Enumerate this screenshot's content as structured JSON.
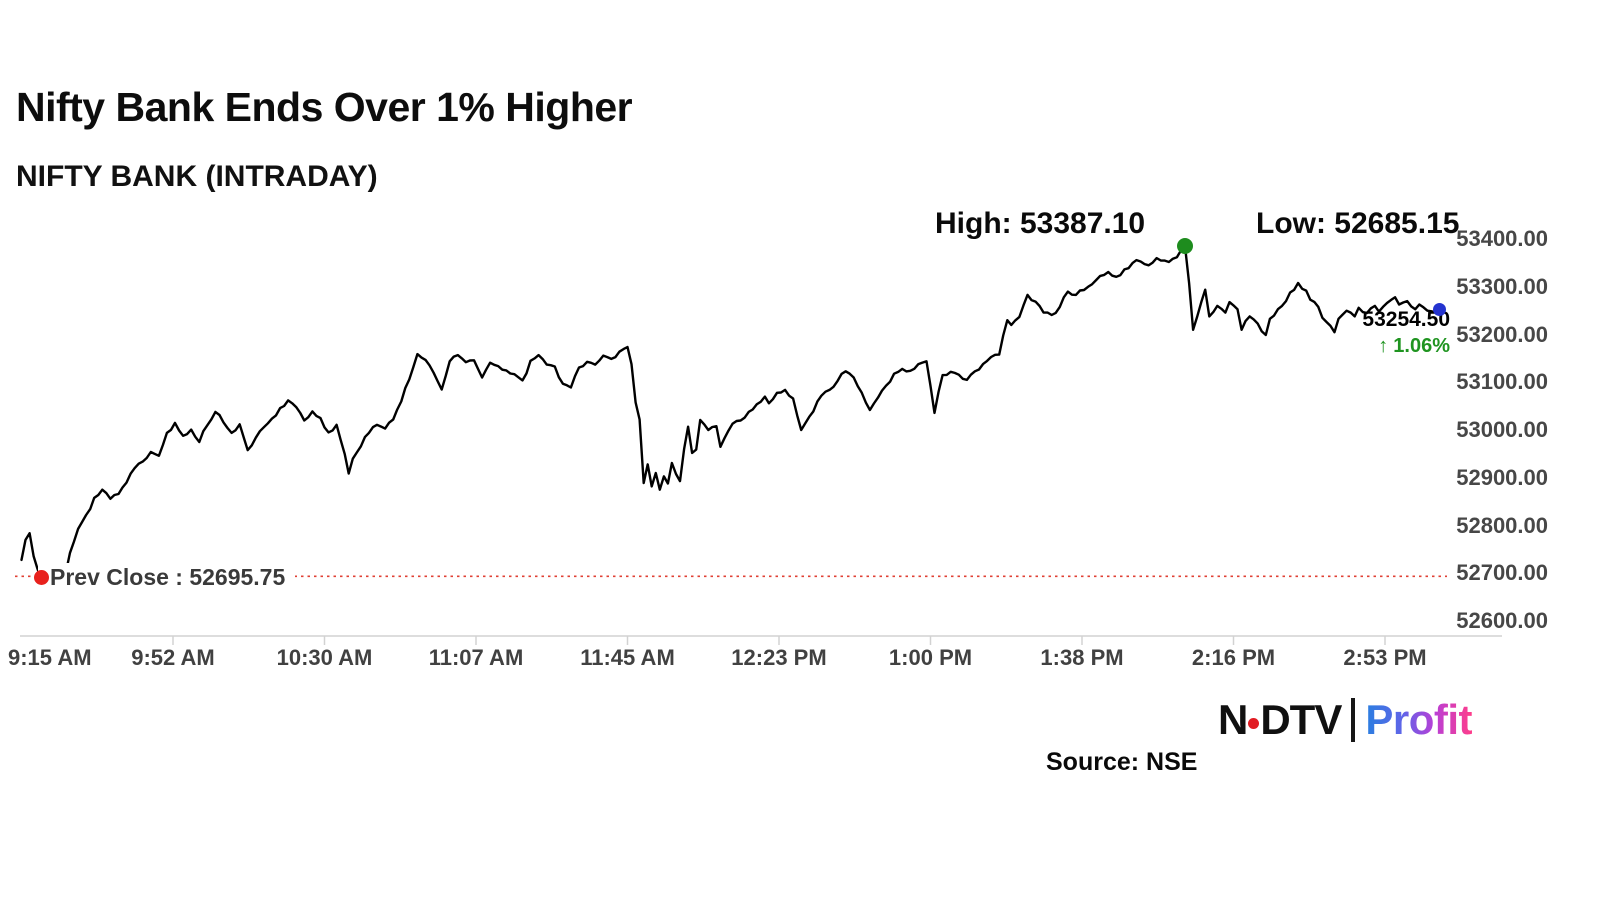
{
  "header": {
    "title": "Nifty Bank Ends Over 1% Higher",
    "subtitle": "NIFTY BANK (INTRADAY)"
  },
  "annotations": {
    "high_label": "High: 53387.10",
    "low_label": "Low: 52685.15",
    "prev_close_label": "Prev Close : 52695.75",
    "last_price": "53254.50",
    "change_arrow": "↑",
    "change_pct": "1.06%"
  },
  "footer": {
    "logo_ndtv_left": "N",
    "logo_ndtv_right": "DTV",
    "logo_profit": "Profit",
    "source_label": "Source: NSE"
  },
  "colors": {
    "line": "#000000",
    "prev_close_line": "#e04034",
    "axis": "#d2d2d2",
    "green": "#1e8c1e",
    "red": "#e8211d",
    "blue": "#2433cf",
    "profit_gradient_start": "#2a7fe0",
    "profit_gradient_end": "#ff3d8a"
  },
  "chart_data": {
    "type": "line",
    "title": "NIFTY BANK (INTRADAY)",
    "xlabel": "",
    "ylabel": "",
    "legend": [],
    "grid": false,
    "x_ticks": [
      "9:15 AM",
      "9:52 AM",
      "10:30 AM",
      "11:07 AM",
      "11:45 AM",
      "12:23 PM",
      "1:00 PM",
      "1:38 PM",
      "2:16 PM",
      "2:53 PM"
    ],
    "x_tick_minutes": [
      0,
      37.5,
      75,
      112.5,
      150,
      187.5,
      225,
      262.5,
      300,
      337.5
    ],
    "y_tick_labels": [
      "53400.00",
      "53300.00",
      "53200.00",
      "53100.00",
      "53000.00",
      "52900.00",
      "52800.00",
      "52700.00",
      "52600.00"
    ],
    "y_tick_values": [
      53400,
      53300,
      53200,
      53100,
      53000,
      52900,
      52800,
      52700,
      52600
    ],
    "ylim": [
      52600,
      53400
    ],
    "xlim_minutes": [
      0,
      352
    ],
    "high": 53387.1,
    "low": 52685.15,
    "close": 53254.5,
    "prev_close": 52695.75,
    "change_pct": 1.06,
    "series": [
      {
        "name": "NIFTY BANK",
        "points": [
          [
            0,
            52730
          ],
          [
            1,
            52772
          ],
          [
            2,
            52786
          ],
          [
            3,
            52738
          ],
          [
            4,
            52710
          ],
          [
            5,
            52685.15
          ],
          [
            6,
            52702
          ],
          [
            7,
            52690
          ],
          [
            8,
            52706
          ],
          [
            9,
            52694
          ],
          [
            10,
            52716
          ],
          [
            11,
            52704
          ],
          [
            12,
            52745
          ],
          [
            14,
            52795
          ],
          [
            16,
            52824
          ],
          [
            18,
            52860
          ],
          [
            20,
            52877
          ],
          [
            22,
            52858
          ],
          [
            24,
            52868
          ],
          [
            26,
            52892
          ],
          [
            28,
            52922
          ],
          [
            30,
            52936
          ],
          [
            32,
            52956
          ],
          [
            34,
            52948
          ],
          [
            36,
            52996
          ],
          [
            38,
            53017
          ],
          [
            40,
            52990
          ],
          [
            42,
            53003
          ],
          [
            44,
            52977
          ],
          [
            46,
            53012
          ],
          [
            48,
            53040
          ],
          [
            50,
            53018
          ],
          [
            52,
            52996
          ],
          [
            54,
            53014
          ],
          [
            56,
            52960
          ],
          [
            58,
            52986
          ],
          [
            60,
            53008
          ],
          [
            62,
            53026
          ],
          [
            64,
            53048
          ],
          [
            66,
            53064
          ],
          [
            68,
            53050
          ],
          [
            70,
            53022
          ],
          [
            72,
            53041
          ],
          [
            74,
            53027
          ],
          [
            76,
            52997
          ],
          [
            78,
            53013
          ],
          [
            80,
            52952
          ],
          [
            81,
            52911
          ],
          [
            82,
            52942
          ],
          [
            84,
            52968
          ],
          [
            86,
            52996
          ],
          [
            88,
            53013
          ],
          [
            90,
            53005
          ],
          [
            92,
            53024
          ],
          [
            94,
            53062
          ],
          [
            96,
            53108
          ],
          [
            98,
            53161
          ],
          [
            100,
            53149
          ],
          [
            102,
            53122
          ],
          [
            104,
            53087
          ],
          [
            106,
            53146
          ],
          [
            108,
            53159
          ],
          [
            110,
            53144
          ],
          [
            112,
            53148
          ],
          [
            114,
            53112
          ],
          [
            116,
            53143
          ],
          [
            118,
            53136
          ],
          [
            120,
            53127
          ],
          [
            122,
            53119
          ],
          [
            124,
            53106
          ],
          [
            126,
            53147
          ],
          [
            128,
            53159
          ],
          [
            130,
            53139
          ],
          [
            132,
            53135
          ],
          [
            134,
            53099
          ],
          [
            136,
            53091
          ],
          [
            138,
            53133
          ],
          [
            140,
            53145
          ],
          [
            142,
            53139
          ],
          [
            144,
            53158
          ],
          [
            146,
            53151
          ],
          [
            148,
            53166
          ],
          [
            150,
            53176
          ],
          [
            151,
            53140
          ],
          [
            152,
            53060
          ],
          [
            153,
            53024
          ],
          [
            154,
            52891
          ],
          [
            155,
            52930
          ],
          [
            156,
            52884
          ],
          [
            157,
            52912
          ],
          [
            158,
            52877
          ],
          [
            159,
            52905
          ],
          [
            160,
            52890
          ],
          [
            161,
            52933
          ],
          [
            162,
            52910
          ],
          [
            163,
            52895
          ],
          [
            164,
            52962
          ],
          [
            165,
            53009
          ],
          [
            166,
            52954
          ],
          [
            167,
            52961
          ],
          [
            168,
            53023
          ],
          [
            170,
            53002
          ],
          [
            172,
            53010
          ],
          [
            173,
            52967
          ],
          [
            174,
            52985
          ],
          [
            176,
            53015
          ],
          [
            178,
            53022
          ],
          [
            180,
            53040
          ],
          [
            182,
            53056
          ],
          [
            184,
            53072
          ],
          [
            185,
            53058
          ],
          [
            187,
            53080
          ],
          [
            189,
            53086
          ],
          [
            191,
            53068
          ],
          [
            193,
            53002
          ],
          [
            195,
            53030
          ],
          [
            197,
            53062
          ],
          [
            200,
            53086
          ],
          [
            202,
            53105
          ],
          [
            204,
            53125
          ],
          [
            206,
            53112
          ],
          [
            208,
            53080
          ],
          [
            210,
            53044
          ],
          [
            212,
            53070
          ],
          [
            214,
            53095
          ],
          [
            216,
            53120
          ],
          [
            218,
            53130
          ],
          [
            220,
            53126
          ],
          [
            222,
            53140
          ],
          [
            224,
            53146
          ],
          [
            226,
            53038
          ],
          [
            228,
            53117
          ],
          [
            230,
            53124
          ],
          [
            232,
            53118
          ],
          [
            234,
            53107
          ],
          [
            236,
            53125
          ],
          [
            238,
            53140
          ],
          [
            240,
            53155
          ],
          [
            242,
            53160
          ],
          [
            243,
            53200
          ],
          [
            244,
            53232
          ],
          [
            245,
            53222
          ],
          [
            247,
            53239
          ],
          [
            249,
            53285
          ],
          [
            251,
            53271
          ],
          [
            253,
            53248
          ],
          [
            255,
            53243
          ],
          [
            257,
            53260
          ],
          [
            259,
            53292
          ],
          [
            261,
            53285
          ],
          [
            264,
            53302
          ],
          [
            266,
            53316
          ],
          [
            269,
            53333
          ],
          [
            271,
            53323
          ],
          [
            274,
            53341
          ],
          [
            276,
            53358
          ],
          [
            279,
            53347
          ],
          [
            281,
            53362
          ],
          [
            284,
            53354
          ],
          [
            286,
            53364
          ],
          [
            288,
            53387.1
          ],
          [
            289,
            53310
          ],
          [
            290,
            53212
          ],
          [
            291,
            53239
          ],
          [
            293,
            53296
          ],
          [
            294,
            53240
          ],
          [
            296,
            53262
          ],
          [
            298,
            53248
          ],
          [
            299,
            53270
          ],
          [
            301,
            53255
          ],
          [
            302,
            53212
          ],
          [
            304,
            53240
          ],
          [
            306,
            53225
          ],
          [
            308,
            53201
          ],
          [
            309,
            53235
          ],
          [
            311,
            53255
          ],
          [
            313,
            53272
          ],
          [
            314,
            53290
          ],
          [
            316,
            53310
          ],
          [
            318,
            53294
          ],
          [
            319,
            53275
          ],
          [
            321,
            53260
          ],
          [
            322,
            53237
          ],
          [
            324,
            53220
          ],
          [
            325,
            53207
          ],
          [
            326,
            53235
          ],
          [
            328,
            53252
          ],
          [
            330,
            53240
          ],
          [
            331,
            53258
          ],
          [
            333,
            53247
          ],
          [
            335,
            53262
          ],
          [
            336,
            53250
          ],
          [
            338,
            53268
          ],
          [
            340,
            53280
          ],
          [
            341,
            53265
          ],
          [
            343,
            53272
          ],
          [
            345,
            53255
          ],
          [
            346,
            53265
          ],
          [
            348,
            53252
          ],
          [
            350,
            53248
          ],
          [
            351,
            53254.5
          ]
        ]
      }
    ]
  }
}
